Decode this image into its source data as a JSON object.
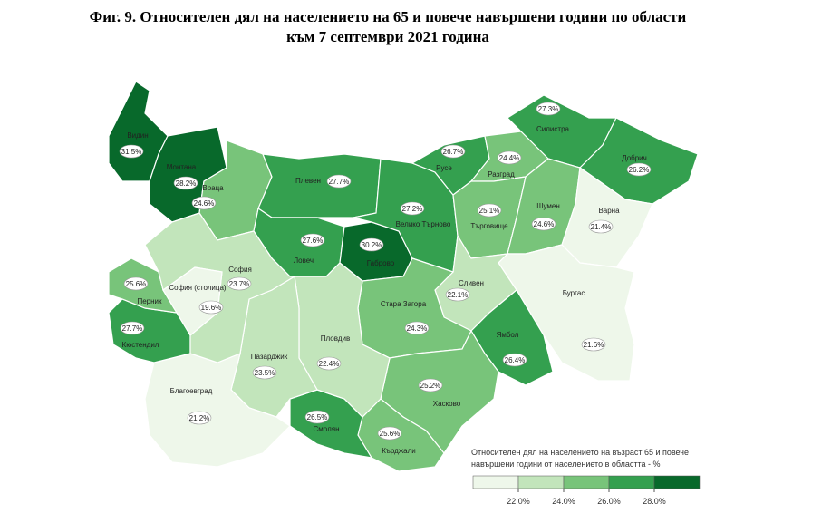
{
  "title": [
    "Фиг. 9. Относителен дял на населението на 65 и повече навършени години по области",
    "към 7 септември 2021 година"
  ],
  "map": {
    "regions": [
      {
        "name": "Видин",
        "value": 31.5,
        "value_label": "31.5%"
      },
      {
        "name": "Монтана",
        "value": 28.2,
        "value_label": "28.2%"
      },
      {
        "name": "Враца",
        "value": 24.6,
        "value_label": "24.6%"
      },
      {
        "name": "Плевен",
        "value": 27.7,
        "value_label": "27.7%"
      },
      {
        "name": "Ловеч",
        "value": 27.6,
        "value_label": "27.6%"
      },
      {
        "name": "Габрово",
        "value": 30.2,
        "value_label": "30.2%"
      },
      {
        "name": "Велико Търново",
        "value": 27.2,
        "value_label": "27.2%"
      },
      {
        "name": "Русе",
        "value": 26.7,
        "value_label": "26.7%"
      },
      {
        "name": "Разград",
        "value": 24.4,
        "value_label": "24.4%"
      },
      {
        "name": "Силистра",
        "value": 27.3,
        "value_label": "27.3%"
      },
      {
        "name": "Добрич",
        "value": 26.2,
        "value_label": "26.2%"
      },
      {
        "name": "Търговище",
        "value": 25.1,
        "value_label": "25.1%"
      },
      {
        "name": "Шумен",
        "value": 24.6,
        "value_label": "24.6%"
      },
      {
        "name": "Варна",
        "value": 21.4,
        "value_label": "21.4%"
      },
      {
        "name": "Бургас",
        "value": 21.6,
        "value_label": "21.6%"
      },
      {
        "name": "Сливен",
        "value": 22.1,
        "value_label": "22.1%"
      },
      {
        "name": "Ямбол",
        "value": 26.4,
        "value_label": "26.4%"
      },
      {
        "name": "Стара Загора",
        "value": 24.3,
        "value_label": "24.3%"
      },
      {
        "name": "Хасково",
        "value": 25.2,
        "value_label": "25.2%"
      },
      {
        "name": "Кърджали",
        "value": 25.6,
        "value_label": "25.6%"
      },
      {
        "name": "Смолян",
        "value": 26.5,
        "value_label": "26.5%"
      },
      {
        "name": "Пловдив",
        "value": 22.4,
        "value_label": "22.4%"
      },
      {
        "name": "Пазарджик",
        "value": 23.5,
        "value_label": "23.5%"
      },
      {
        "name": "Благоевград",
        "value": 21.2,
        "value_label": "21.2%"
      },
      {
        "name": "Кюстендил",
        "value": 27.7,
        "value_label": "27.7%"
      },
      {
        "name": "Перник",
        "value": 25.6,
        "value_label": "25.6%"
      },
      {
        "name": "София",
        "value": 23.7,
        "value_label": "23.7%"
      },
      {
        "name": "София (столица)",
        "value": 19.6,
        "value_label": "19.6%"
      }
    ],
    "legend": {
      "title": [
        "Относителен дял на населението на възраст 65 и повече",
        "навършени години от населението в областта - %"
      ],
      "ticks": [
        {
          "value": 22,
          "label": "22.0%"
        },
        {
          "value": 24,
          "label": "24.0%"
        },
        {
          "value": 26,
          "label": "26.0%"
        },
        {
          "value": 28,
          "label": "28.0%"
        }
      ],
      "colors": [
        "#eef7ea",
        "#c2e5bb",
        "#78c47a",
        "#34a04f",
        "#08692b"
      ]
    }
  }
}
